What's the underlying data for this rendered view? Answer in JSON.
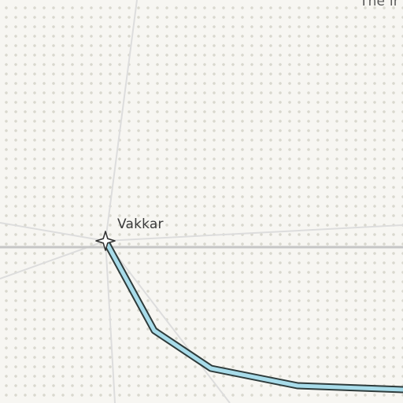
{
  "map": {
    "background_color": "#f7f6f2",
    "dot_color": "#d9d8ce",
    "road_color": "#c8c8c8",
    "minor_road_color": "#dcdcdc",
    "route_fill_color": "#a8dcea",
    "route_outline_color": "#2e3b3b",
    "places": [
      {
        "name": "Vakkar",
        "icon": "star-icon"
      }
    ],
    "corner_label": "The ir"
  }
}
